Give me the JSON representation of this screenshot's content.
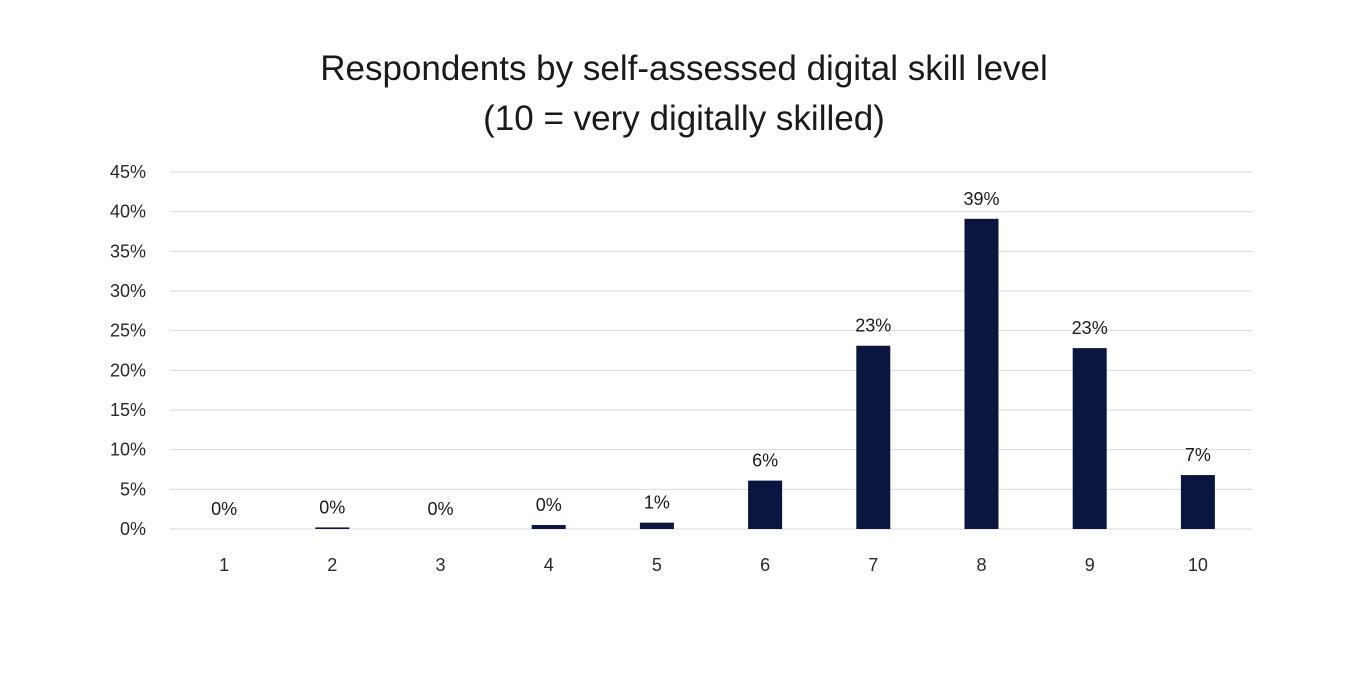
{
  "chart_data": {
    "type": "bar",
    "title": "Respondents by self-assessed digital skill level",
    "subtitle": "(10 = very digitally skilled)",
    "xlabel": "",
    "ylabel": "",
    "categories": [
      "1",
      "2",
      "3",
      "4",
      "5",
      "6",
      "7",
      "8",
      "9",
      "10"
    ],
    "values": [
      0.0,
      0.2,
      0.0,
      0.5,
      0.8,
      6.1,
      23.1,
      39.1,
      22.8,
      6.8
    ],
    "data_labels": [
      "0%",
      "0%",
      "0%",
      "0%",
      "1%",
      "6%",
      "23%",
      "39%",
      "23%",
      "7%"
    ],
    "ylim": [
      0,
      45
    ],
    "yticks": [
      0,
      5,
      10,
      15,
      20,
      25,
      30,
      35,
      40,
      45
    ],
    "ytick_labels": [
      "0%",
      "5%",
      "10%",
      "15%",
      "20%",
      "25%",
      "30%",
      "35%",
      "40%",
      "45%"
    ],
    "grid": true,
    "legend": "none",
    "colors": {
      "bar": "#0b1640",
      "grid": "#d9d9d9"
    }
  }
}
